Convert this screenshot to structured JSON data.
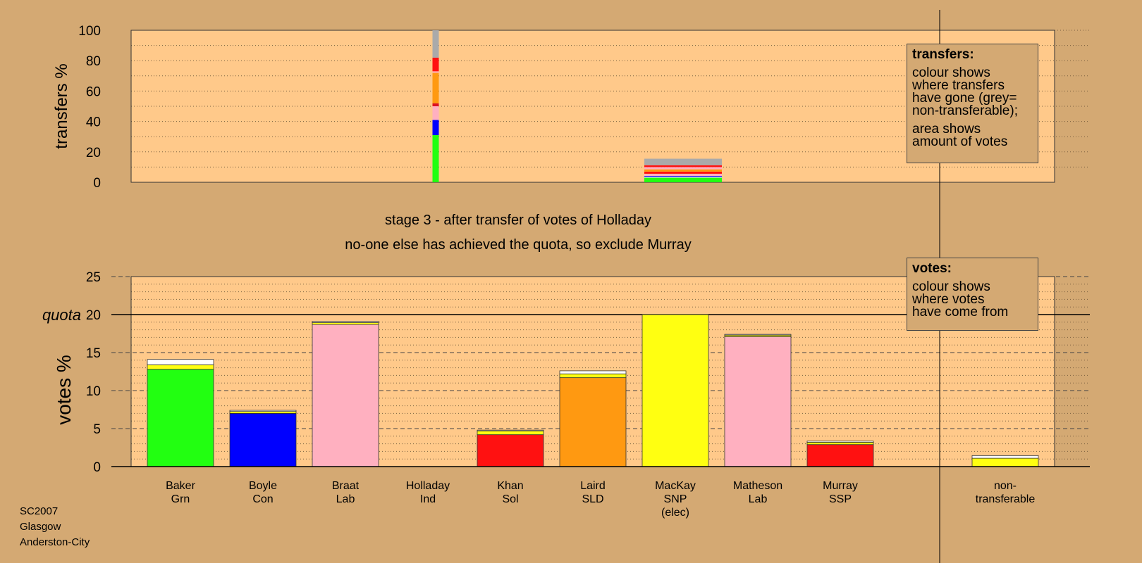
{
  "chart_data": [
    {
      "type": "bar",
      "title": "",
      "ylabel": "transfers %",
      "ylim": [
        0,
        100
      ],
      "yticks": [
        0,
        20,
        40,
        60,
        80,
        100
      ],
      "categories": [
        "Baker",
        "Boyle",
        "Braat",
        "Holladay",
        "Khan",
        "Laird",
        "MacKay",
        "Matheson",
        "Murray"
      ],
      "bars": [
        {
          "category": "Holladay",
          "segments": [
            {
              "color": "#22ff11",
              "value": 31
            },
            {
              "color": "#0000ff",
              "value": 10
            },
            {
              "color": "#ffb0c0",
              "value": 9
            },
            {
              "color": "#dd1122",
              "value": 2
            },
            {
              "color": "#ff9911",
              "value": 20
            },
            {
              "color": "#ffb0c0",
              "value": 1
            },
            {
              "color": "#ff1111",
              "value": 9
            },
            {
              "color": "#aaaaaa",
              "value": 18
            }
          ]
        },
        {
          "category": "MacKay",
          "segments": [
            {
              "color": "#22ff11",
              "value": 3
            },
            {
              "color": "#ffffff",
              "value": 0.5
            },
            {
              "color": "#0000ff",
              "value": 0.6
            },
            {
              "color": "#ffb0c0",
              "value": 1.5
            },
            {
              "color": "#ff1111",
              "value": 1.4
            },
            {
              "color": "#ff9911",
              "value": 1.5
            },
            {
              "color": "#ffb0c0",
              "value": 1.5
            },
            {
              "color": "#ff1111",
              "value": 1.2
            },
            {
              "color": "#aaaaaa",
              "value": 4.3
            }
          ]
        }
      ],
      "legend": {
        "title": "transfers:",
        "lines": [
          "colour shows\nwhere transfers\nhave gone (grey=\nnon-transferable);",
          "area shows\namount of votes"
        ],
        "placement": "top-right"
      }
    },
    {
      "type": "bar",
      "title": "",
      "subtitle": [
        "stage 3 - after transfer of votes of Holladay",
        "no-one else has achieved the quota, so exclude Murray"
      ],
      "ylabel": "votes %",
      "ylim": [
        0,
        25
      ],
      "yticks": [
        0,
        5,
        10,
        15,
        20,
        25
      ],
      "quota": 20,
      "quota_label": "quota",
      "categories": [
        {
          "name": "Baker",
          "party": "Grn",
          "note": ""
        },
        {
          "name": "Boyle",
          "party": "Con",
          "note": ""
        },
        {
          "name": "Braat",
          "party": "Lab",
          "note": ""
        },
        {
          "name": "Holladay",
          "party": "Ind",
          "note": ""
        },
        {
          "name": "Khan",
          "party": "Sol",
          "note": ""
        },
        {
          "name": "Laird",
          "party": "SLD",
          "note": ""
        },
        {
          "name": "MacKay",
          "party": "SNP",
          "note": "(elec)"
        },
        {
          "name": "Matheson",
          "party": "Lab",
          "note": ""
        },
        {
          "name": "Murray",
          "party": "SSP",
          "note": ""
        }
      ],
      "bars": [
        {
          "category": "Baker",
          "segments": [
            {
              "color": "#22ff11",
              "value": 12.8
            },
            {
              "color": "#ffff11",
              "value": 0.6
            },
            {
              "color": "#ffffff",
              "value": 0.7
            }
          ]
        },
        {
          "category": "Boyle",
          "segments": [
            {
              "color": "#0000ff",
              "value": 7.0
            },
            {
              "color": "#ffff11",
              "value": 0.25
            },
            {
              "color": "#ffffff",
              "value": 0.15
            }
          ]
        },
        {
          "category": "Braat",
          "segments": [
            {
              "color": "#ffb0c0",
              "value": 18.7
            },
            {
              "color": "#ffff11",
              "value": 0.25
            },
            {
              "color": "#ffffff",
              "value": 0.15
            }
          ]
        },
        {
          "category": "Holladay",
          "segments": []
        },
        {
          "category": "Khan",
          "segments": [
            {
              "color": "#ff1111",
              "value": 4.2
            },
            {
              "color": "#ffff11",
              "value": 0.5
            },
            {
              "color": "#ffffff",
              "value": 0.1
            }
          ]
        },
        {
          "category": "Laird",
          "segments": [
            {
              "color": "#ff9911",
              "value": 11.7
            },
            {
              "color": "#ffff11",
              "value": 0.5
            },
            {
              "color": "#ffffff",
              "value": 0.4
            }
          ]
        },
        {
          "category": "MacKay",
          "segments": [
            {
              "color": "#ffff11",
              "value": 20.0
            }
          ]
        },
        {
          "category": "Matheson",
          "segments": [
            {
              "color": "#ffb0c0",
              "value": 17.1
            },
            {
              "color": "#ffff11",
              "value": 0.2
            },
            {
              "color": "#ffffff",
              "value": 0.1
            }
          ]
        },
        {
          "category": "Murray",
          "segments": [
            {
              "color": "#ff1111",
              "value": 2.9
            },
            {
              "color": "#ffff11",
              "value": 0.3
            },
            {
              "color": "#ffffff",
              "value": 0.15
            }
          ]
        }
      ],
      "nontransferable": {
        "label": [
          "non-",
          "transferable"
        ],
        "segments": [
          {
            "color": "#ffff11",
            "value": 1.1
          },
          {
            "color": "#ffffff",
            "value": 0.35
          }
        ]
      },
      "legend": {
        "title": "votes:",
        "lines": [
          "colour shows\nwhere votes\nhave come from"
        ],
        "placement": "top-right"
      }
    }
  ],
  "footer": [
    "SC2007",
    "Glasgow",
    "Anderston-City"
  ],
  "colors": {
    "background": "#d4a973",
    "plot_background": "#ffc98a"
  }
}
